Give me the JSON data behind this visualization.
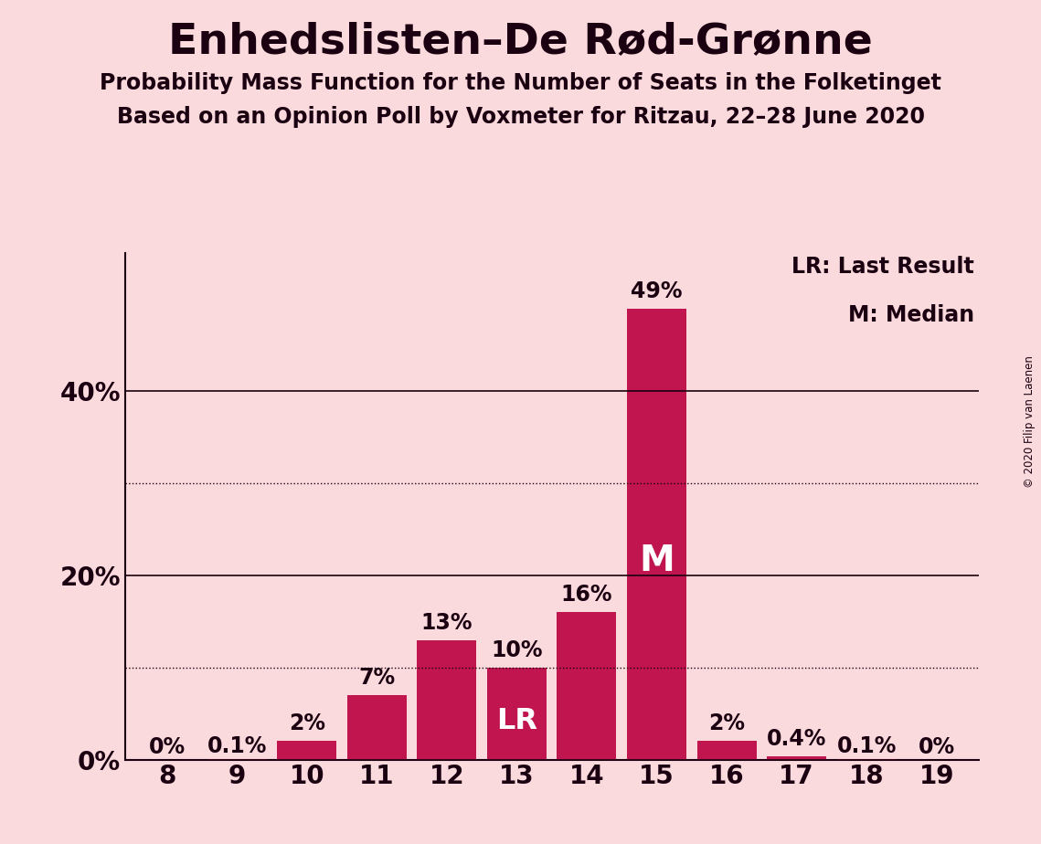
{
  "title": "Enhedslisten–De Rød-Grønne",
  "subtitle1": "Probability Mass Function for the Number of Seats in the Folketinget",
  "subtitle2": "Based on an Opinion Poll by Voxmeter for Ritzau, 22–28 June 2020",
  "copyright": "© 2020 Filip van Laenen",
  "categories": [
    8,
    9,
    10,
    11,
    12,
    13,
    14,
    15,
    16,
    17,
    18,
    19
  ],
  "values": [
    0.0,
    0.1,
    2.0,
    7.0,
    13.0,
    10.0,
    16.0,
    49.0,
    2.0,
    0.4,
    0.1,
    0.0
  ],
  "bar_color": "#C0154E",
  "background_color": "#FADADD",
  "label_color": "#1A0010",
  "bar_labels": [
    "0%",
    "0.1%",
    "2%",
    "7%",
    "13%",
    "10%",
    "16%",
    "49%",
    "2%",
    "0.4%",
    "0.1%",
    "0%"
  ],
  "lr_bar_index": 5,
  "median_bar_index": 7,
  "yticks_solid": [
    0,
    20,
    40
  ],
  "yticks_dotted": [
    10,
    30
  ],
  "ylim": [
    0,
    55
  ],
  "legend_text1": "LR: Last Result",
  "legend_text2": "M: Median",
  "title_fontsize": 34,
  "subtitle_fontsize": 17,
  "tick_fontsize": 20,
  "label_fontsize": 17,
  "legend_fontsize": 17
}
